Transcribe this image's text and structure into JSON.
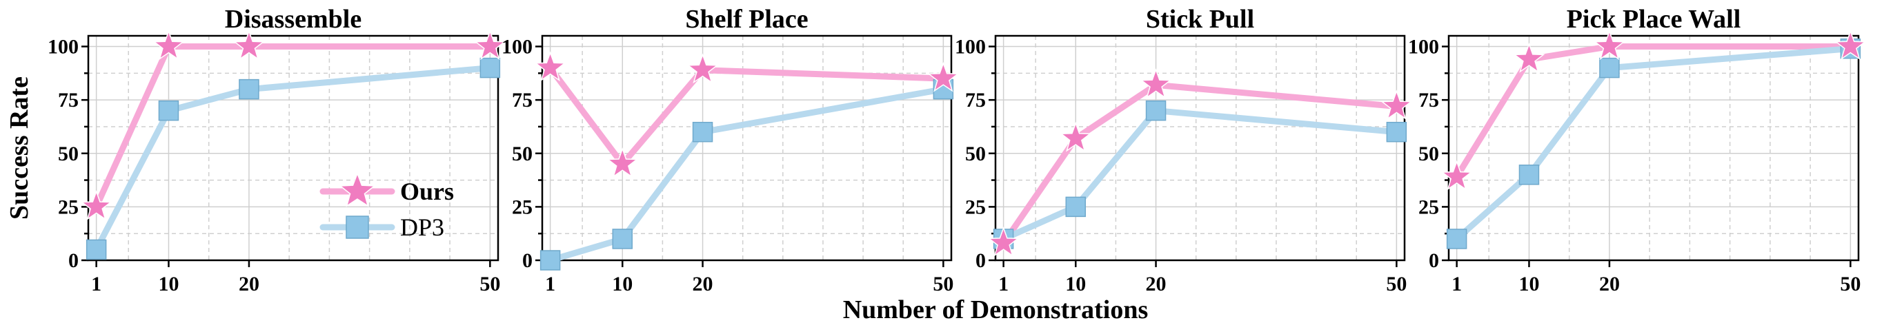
{
  "chart_data": [
    {
      "type": "line",
      "title": "Disassemble",
      "x": [
        1,
        10,
        20,
        50
      ],
      "xlim": [
        0,
        51
      ],
      "ylim": [
        0,
        105
      ],
      "xticks": [
        "1",
        "10",
        "20",
        "50"
      ],
      "yticks": [
        "0",
        "25",
        "50",
        "75",
        "100"
      ],
      "ylabel": "Success Rate",
      "grid": true,
      "legend": "bottom-right",
      "series": [
        {
          "name": "Ours",
          "values": [
            25,
            100,
            100,
            100
          ],
          "color": "#f07cc0",
          "line_color": "#f7a8d6",
          "marker": "star"
        },
        {
          "name": "DP3",
          "values": [
            5,
            70,
            80,
            90
          ],
          "color": "#8ec5e6",
          "line_color": "#b7d9ee",
          "marker": "square"
        }
      ]
    },
    {
      "type": "line",
      "title": "Shelf Place",
      "x": [
        1,
        10,
        20,
        50
      ],
      "xlim": [
        0,
        51
      ],
      "ylim": [
        0,
        105
      ],
      "xticks": [
        "1",
        "10",
        "20",
        "50"
      ],
      "yticks": [
        "0",
        "25",
        "50",
        "75",
        "100"
      ],
      "grid": true,
      "series": [
        {
          "name": "Ours",
          "values": [
            90,
            45,
            89,
            85
          ],
          "color": "#f07cc0",
          "line_color": "#f7a8d6",
          "marker": "star"
        },
        {
          "name": "DP3",
          "values": [
            0,
            10,
            60,
            80
          ],
          "color": "#8ec5e6",
          "line_color": "#b7d9ee",
          "marker": "square"
        }
      ]
    },
    {
      "type": "line",
      "title": "Stick Pull",
      "x": [
        1,
        10,
        20,
        50
      ],
      "xlim": [
        0,
        51
      ],
      "ylim": [
        0,
        105
      ],
      "xticks": [
        "1",
        "10",
        "20",
        "50"
      ],
      "yticks": [
        "0",
        "25",
        "50",
        "75",
        "100"
      ],
      "grid": true,
      "series": [
        {
          "name": "Ours",
          "values": [
            8,
            57,
            82,
            72
          ],
          "color": "#f07cc0",
          "line_color": "#f7a8d6",
          "marker": "star"
        },
        {
          "name": "DP3",
          "values": [
            10,
            25,
            70,
            60
          ],
          "color": "#8ec5e6",
          "line_color": "#b7d9ee",
          "marker": "square"
        }
      ]
    },
    {
      "type": "line",
      "title": "Pick Place Wall",
      "x": [
        1,
        10,
        20,
        50
      ],
      "xlim": [
        0,
        51
      ],
      "ylim": [
        0,
        105
      ],
      "xticks": [
        "1",
        "10",
        "20",
        "50"
      ],
      "yticks": [
        "0",
        "25",
        "50",
        "75",
        "100"
      ],
      "grid": true,
      "series": [
        {
          "name": "Ours",
          "values": [
            39,
            94,
            100,
            100
          ],
          "color": "#f07cc0",
          "line_color": "#f7a8d6",
          "marker": "star"
        },
        {
          "name": "DP3",
          "values": [
            10,
            40,
            90,
            99
          ],
          "color": "#8ec5e6",
          "line_color": "#b7d9ee",
          "marker": "square"
        }
      ]
    }
  ],
  "shared_xlabel": "Number of Demonstrations"
}
